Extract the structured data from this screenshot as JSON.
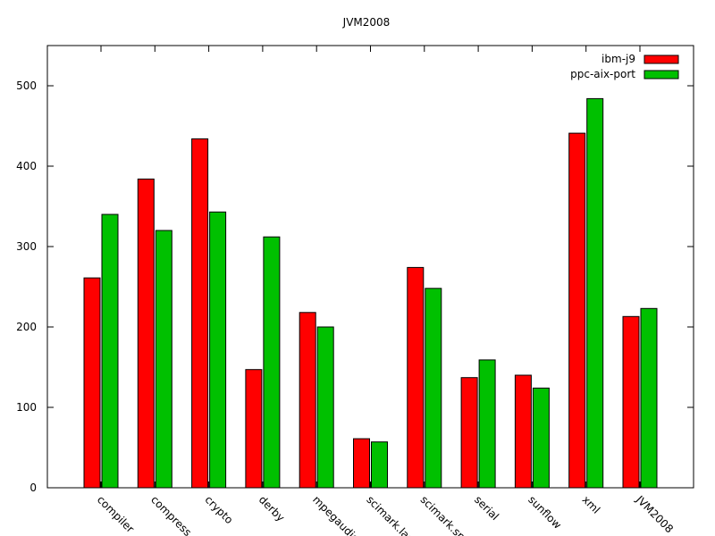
{
  "chart_data": {
    "type": "bar",
    "title": "JVM2008",
    "xlabel": "",
    "ylabel": "",
    "ylim": [
      0,
      550
    ],
    "yticks": [
      0,
      100,
      200,
      300,
      400,
      500
    ],
    "grid": false,
    "legend_position": "top-right",
    "categories": [
      "compiler",
      "compress",
      "crypto",
      "derby",
      "mpegaudio",
      "scimark.lar",
      "scimark.sm",
      "serial",
      "sunflow",
      "xml",
      "JVM2008"
    ],
    "series": [
      {
        "name": "ibm-j9",
        "color": "#ff0000",
        "values": [
          261,
          384,
          434,
          147,
          218,
          61,
          274,
          137,
          140,
          441,
          213
        ]
      },
      {
        "name": "ppc-aix-port",
        "color": "#00c000",
        "values": [
          340,
          320,
          343,
          312,
          200,
          57,
          248,
          159,
          124,
          484,
          223
        ]
      }
    ]
  }
}
